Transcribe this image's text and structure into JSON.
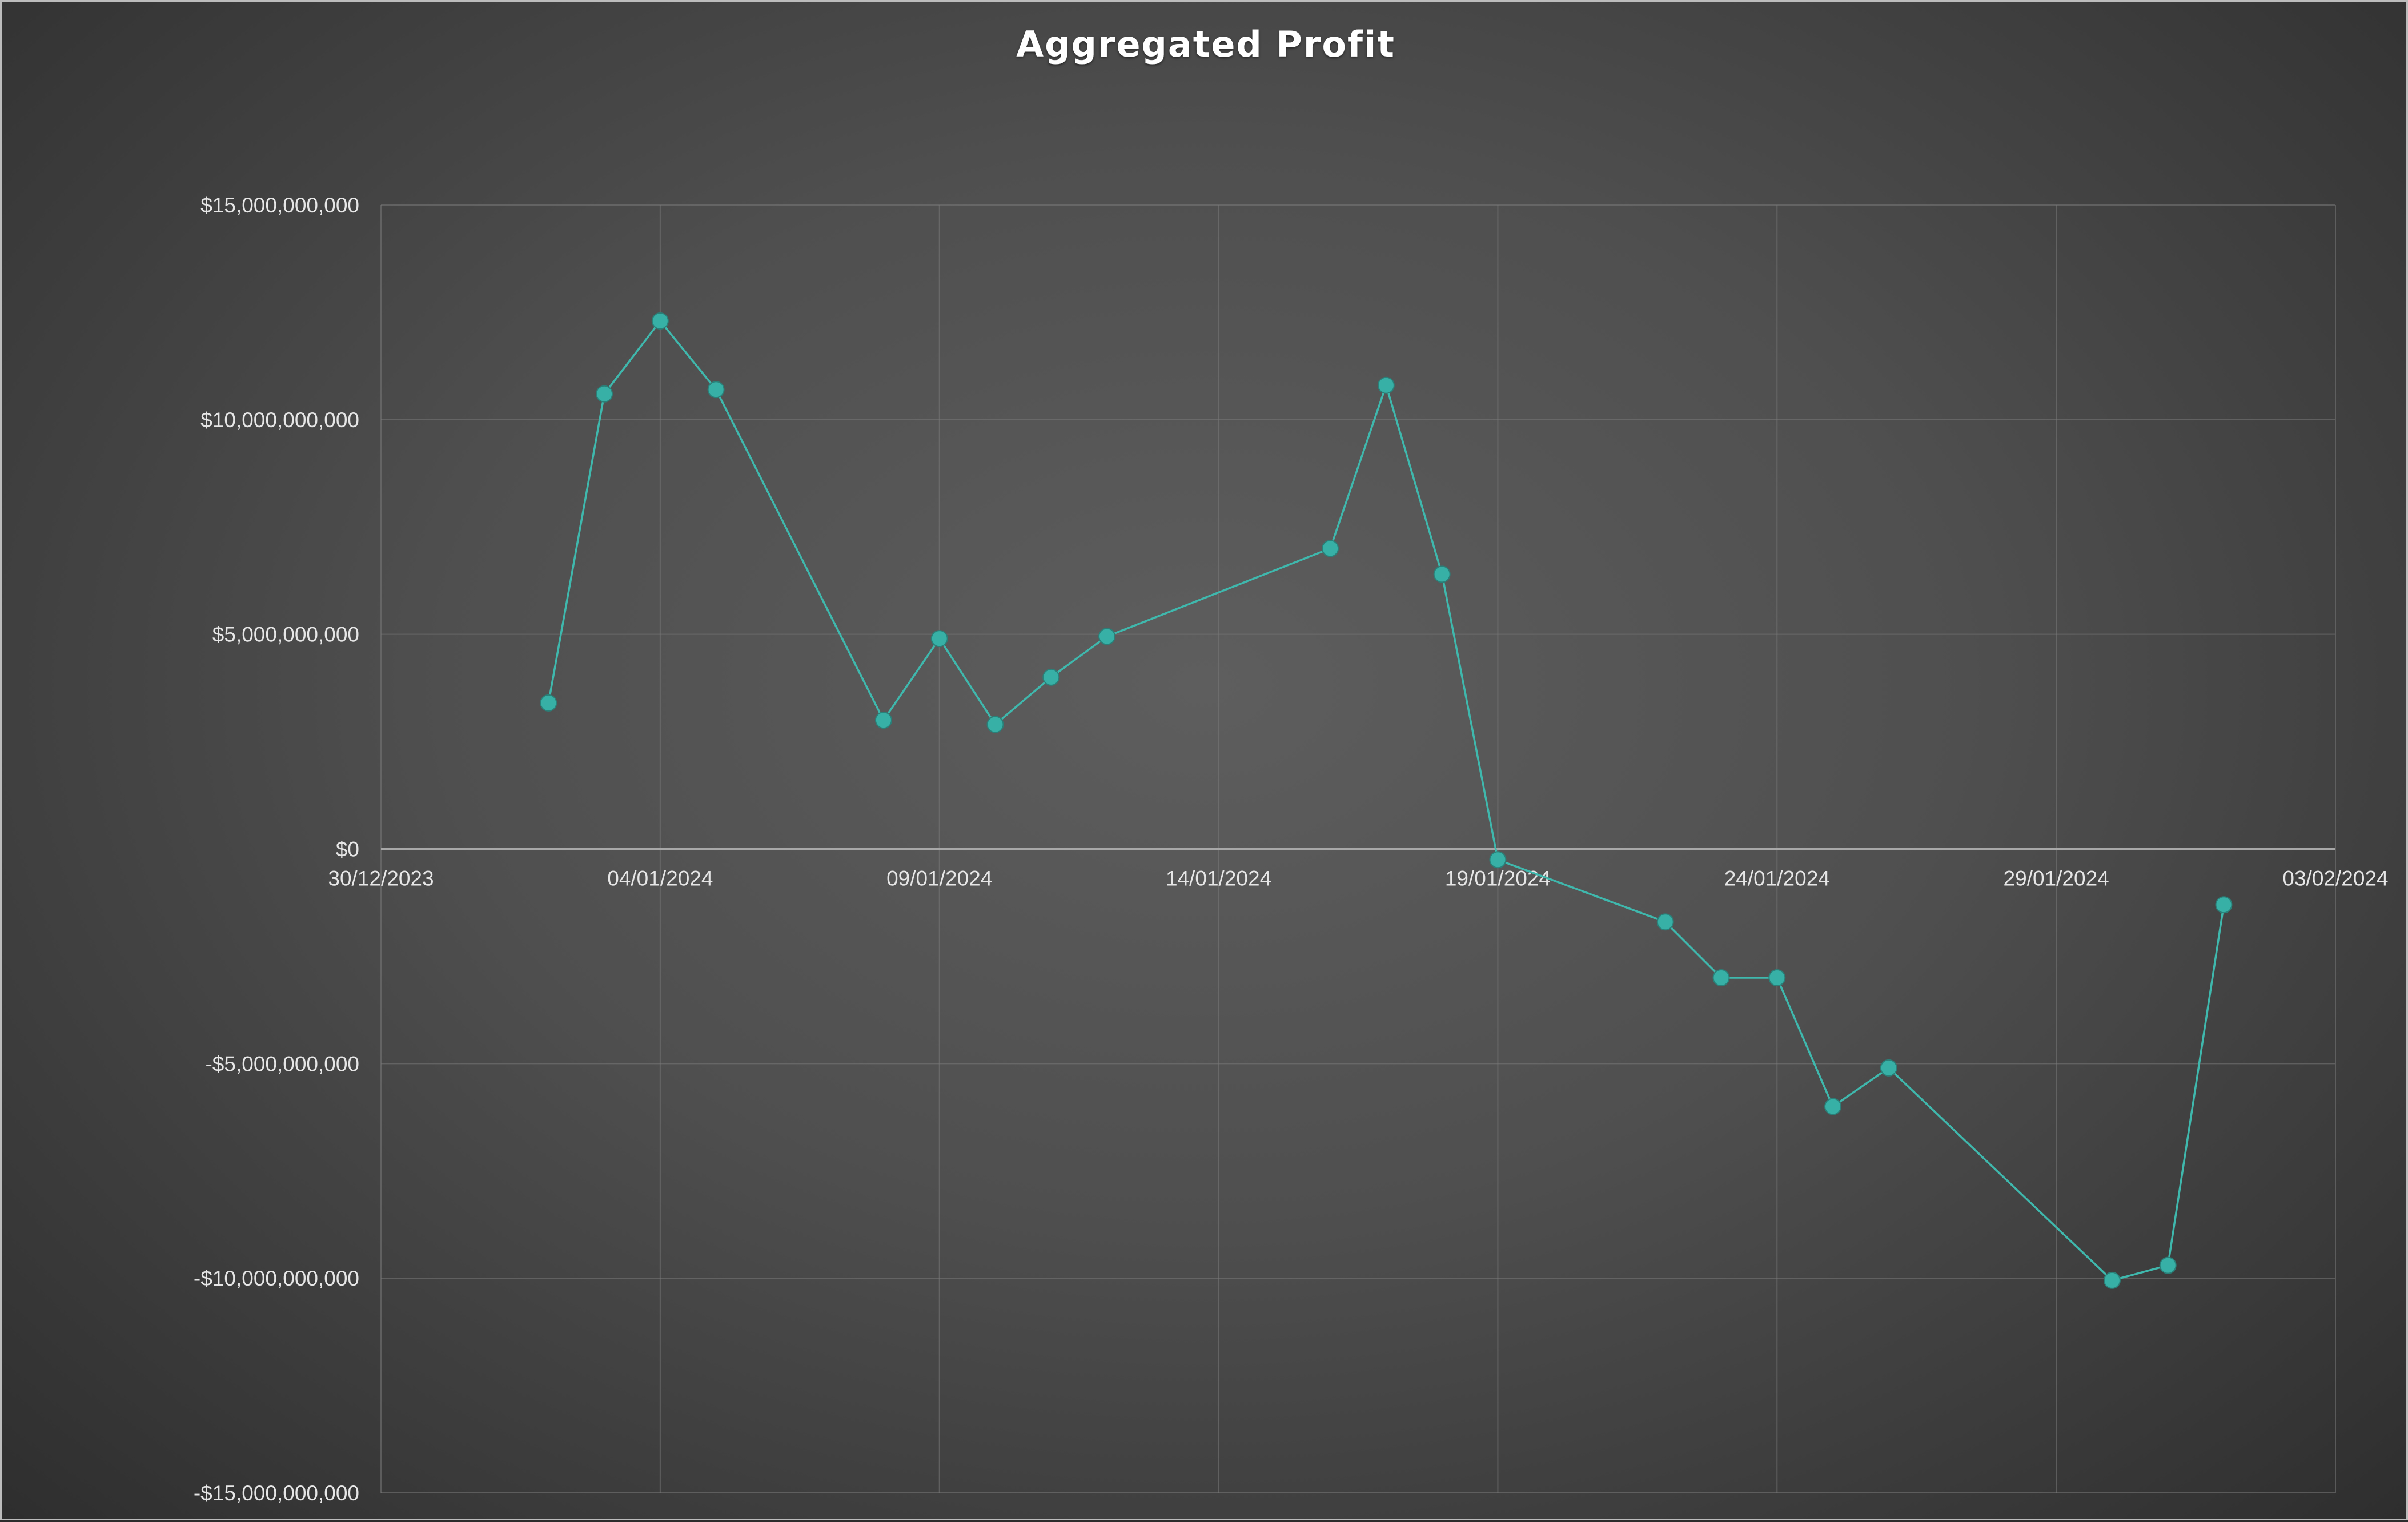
{
  "chart_data": {
    "type": "scatter",
    "title": "Aggregated Profit",
    "xlabel": "",
    "ylabel": "",
    "x_axis": {
      "kind": "date",
      "min": "30/12/2023",
      "max": "03/02/2024",
      "ticks": [
        "30/12/2023",
        "04/01/2024",
        "09/01/2024",
        "14/01/2024",
        "19/01/2024",
        "24/01/2024",
        "29/01/2024",
        "03/02/2024"
      ]
    },
    "y_axis": {
      "min": -15000000000,
      "max": 15000000000,
      "ticks": [
        {
          "value": 15000000000,
          "label": "$15,000,000,000"
        },
        {
          "value": 10000000000,
          "label": "$10,000,000,000"
        },
        {
          "value": 5000000000,
          "label": "$5,000,000,000"
        },
        {
          "value": 0,
          "label": "$0"
        },
        {
          "value": -5000000000,
          "label": "-$5,000,000,000"
        },
        {
          "value": -10000000000,
          "label": "-$10,000,000,000"
        },
        {
          "value": -15000000000,
          "label": "-$15,000,000,000"
        }
      ]
    },
    "grid": true,
    "legend": "none",
    "series_color": "#3fb8ad",
    "series": [
      {
        "points": [
          {
            "x": "02/01/2024",
            "y": 3400000000
          },
          {
            "x": "03/01/2024",
            "y": 10600000000
          },
          {
            "x": "04/01/2024",
            "y": 12300000000
          },
          {
            "x": "05/01/2024",
            "y": 10700000000
          },
          {
            "x": "08/01/2024",
            "y": 3000000000
          },
          {
            "x": "09/01/2024",
            "y": 4900000000
          },
          {
            "x": "10/01/2024",
            "y": 2900000000
          },
          {
            "x": "11/01/2024",
            "y": 4000000000
          },
          {
            "x": "12/01/2024",
            "y": 4950000000
          },
          {
            "x": "16/01/2024",
            "y": 7000000000
          },
          {
            "x": "17/01/2024",
            "y": 10800000000
          },
          {
            "x": "18/01/2024",
            "y": 6400000000
          },
          {
            "x": "19/01/2024",
            "y": -250000000
          },
          {
            "x": "22/01/2024",
            "y": -1700000000
          },
          {
            "x": "23/01/2024",
            "y": -3000000000
          },
          {
            "x": "24/01/2024",
            "y": -3000000000
          },
          {
            "x": "25/01/2024",
            "y": -6000000000
          },
          {
            "x": "26/01/2024",
            "y": -5100000000
          },
          {
            "x": "30/01/2024",
            "y": -10050000000
          },
          {
            "x": "31/01/2024",
            "y": -9700000000
          },
          {
            "x": "01/02/2024",
            "y": -1300000000
          }
        ]
      }
    ]
  }
}
